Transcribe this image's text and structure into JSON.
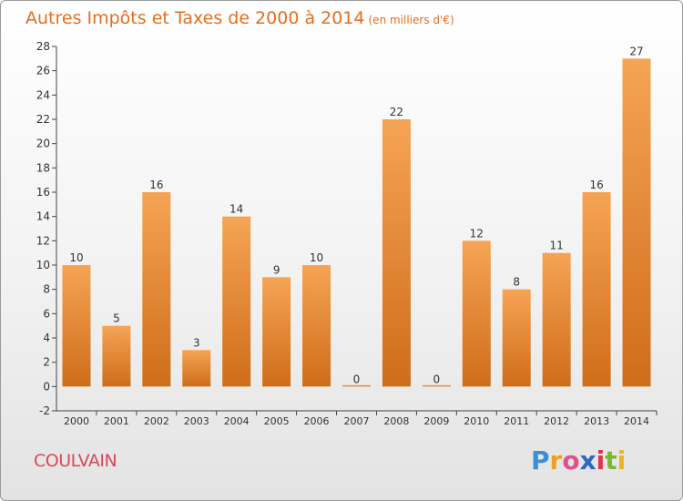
{
  "title": "Autres Impôts et Taxes de 2000 à 2014",
  "subtitle": "(en milliers d'€)",
  "town": "COULVAIN",
  "logo": {
    "p": "P",
    "r": "r",
    "o": "o",
    "x": "x",
    "i1": "i",
    "t": "t",
    "i2": "i"
  },
  "colors": {
    "bar_top": "#f5a455",
    "bar_bottom": "#cf6d19",
    "title": "#e46d1e",
    "town": "#d64a5a"
  },
  "chart_data": {
    "type": "bar",
    "categories": [
      "2000",
      "2001",
      "2002",
      "2003",
      "2004",
      "2005",
      "2006",
      "2007",
      "2008",
      "2009",
      "2010",
      "2011",
      "2012",
      "2013",
      "2014"
    ],
    "values": [
      10,
      5,
      16,
      3,
      14,
      9,
      10,
      0,
      22,
      0,
      12,
      8,
      11,
      16,
      27
    ],
    "ylim": [
      -2,
      28
    ],
    "yticks": [
      -2,
      0,
      2,
      4,
      6,
      8,
      10,
      12,
      14,
      16,
      18,
      20,
      22,
      24,
      26,
      28
    ],
    "grid": false
  }
}
